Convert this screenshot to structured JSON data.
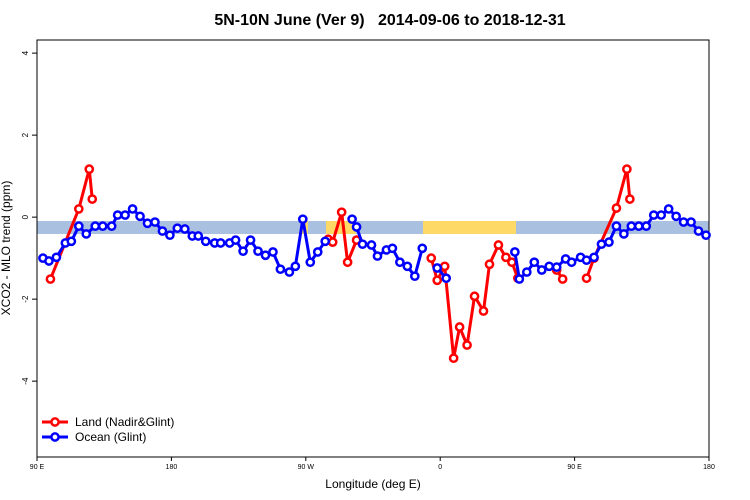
{
  "chart_data": {
    "type": "line",
    "title": "5N-10N June (Ver 9)   2014-09-06 to 2018-12-31",
    "x_label": "Longitude (deg E)",
    "y_label": "XCO2 - MLO trend (ppm)",
    "xlim": [
      90,
      540
    ],
    "ylim": [
      -5.85,
      4.32
    ],
    "xticks": [
      {
        "value": 90,
        "label": "90 E"
      },
      180,
      {
        "value": 270,
        "label": "90 W"
      },
      {
        "value": 360,
        "label": "0"
      },
      {
        "value": 450,
        "label": "90 E"
      },
      {
        "value": 540,
        "label": "180"
      }
    ],
    "yticks": [
      -4,
      -2,
      0,
      2,
      4
    ],
    "legend": "bottom-left",
    "series": [
      {
        "name": "Land (Nadir&Glint)",
        "color": "#ff0000",
        "x": [
          99,
          118,
          125,
          127,
          null,
          285,
          288,
          294,
          298,
          304,
          null,
          354,
          358,
          363,
          369,
          373,
          378,
          383,
          389,
          393,
          399,
          404,
          408,
          412,
          null,
          438,
          442,
          null,
          458,
          463,
          478,
          485,
          487
        ],
        "values": [
          -1.51,
          0.2,
          1.17,
          0.44,
          null,
          -0.54,
          -0.61,
          0.12,
          -1.1,
          -0.56,
          null,
          -1.0,
          -1.54,
          -1.2,
          -3.44,
          -2.68,
          -3.12,
          -1.93,
          -2.29,
          -1.15,
          -0.68,
          -0.98,
          -1.1,
          -1.49,
          null,
          -1.29,
          -1.51,
          null,
          -1.49,
          -1.0,
          0.22,
          1.17,
          0.44
        ]
      },
      {
        "name": "Ocean (Glint)",
        "color": "#0000ff",
        "x": [
          94,
          98,
          103,
          109,
          113,
          118,
          123,
          129,
          134,
          140,
          144,
          149,
          154,
          159,
          164,
          169,
          174,
          179,
          184,
          189,
          194,
          198,
          203,
          209,
          213,
          219,
          223,
          228,
          233,
          238,
          243,
          248,
          253,
          259,
          263,
          268,
          273,
          278,
          283,
          null,
          301,
          304,
          308,
          314,
          318,
          324,
          328,
          333,
          338,
          343,
          348,
          null,
          358,
          364,
          null,
          410,
          413,
          418,
          423,
          428,
          433,
          438,
          444,
          448,
          454,
          458,
          463,
          468,
          473,
          478,
          483,
          488,
          493,
          498,
          503,
          508,
          513,
          518,
          523,
          528,
          533,
          538
        ],
        "values": [
          -1.0,
          -1.07,
          -0.98,
          -0.63,
          -0.59,
          -0.22,
          -0.41,
          -0.22,
          -0.22,
          -0.22,
          0.05,
          0.05,
          0.2,
          0.02,
          -0.15,
          -0.12,
          -0.34,
          -0.44,
          -0.27,
          -0.29,
          -0.46,
          -0.46,
          -0.59,
          -0.63,
          -0.63,
          -0.63,
          -0.56,
          -0.83,
          -0.56,
          -0.83,
          -0.93,
          -0.85,
          -1.27,
          -1.34,
          -1.2,
          -0.05,
          -1.1,
          -0.85,
          -0.59,
          null,
          -0.05,
          -0.24,
          -0.66,
          -0.68,
          -0.95,
          -0.8,
          -0.76,
          -1.1,
          -1.2,
          -1.44,
          -0.76,
          null,
          -1.24,
          -1.49,
          null,
          -0.85,
          -1.51,
          -1.34,
          -1.1,
          -1.29,
          -1.2,
          -1.22,
          -1.02,
          -1.1,
          -0.98,
          -1.05,
          -0.98,
          -0.66,
          -0.61,
          -0.22,
          -0.41,
          -0.22,
          -0.22,
          -0.22,
          0.05,
          0.05,
          0.2,
          0.02,
          -0.12,
          -0.12,
          -0.34,
          -0.44
        ]
      }
    ]
  }
}
